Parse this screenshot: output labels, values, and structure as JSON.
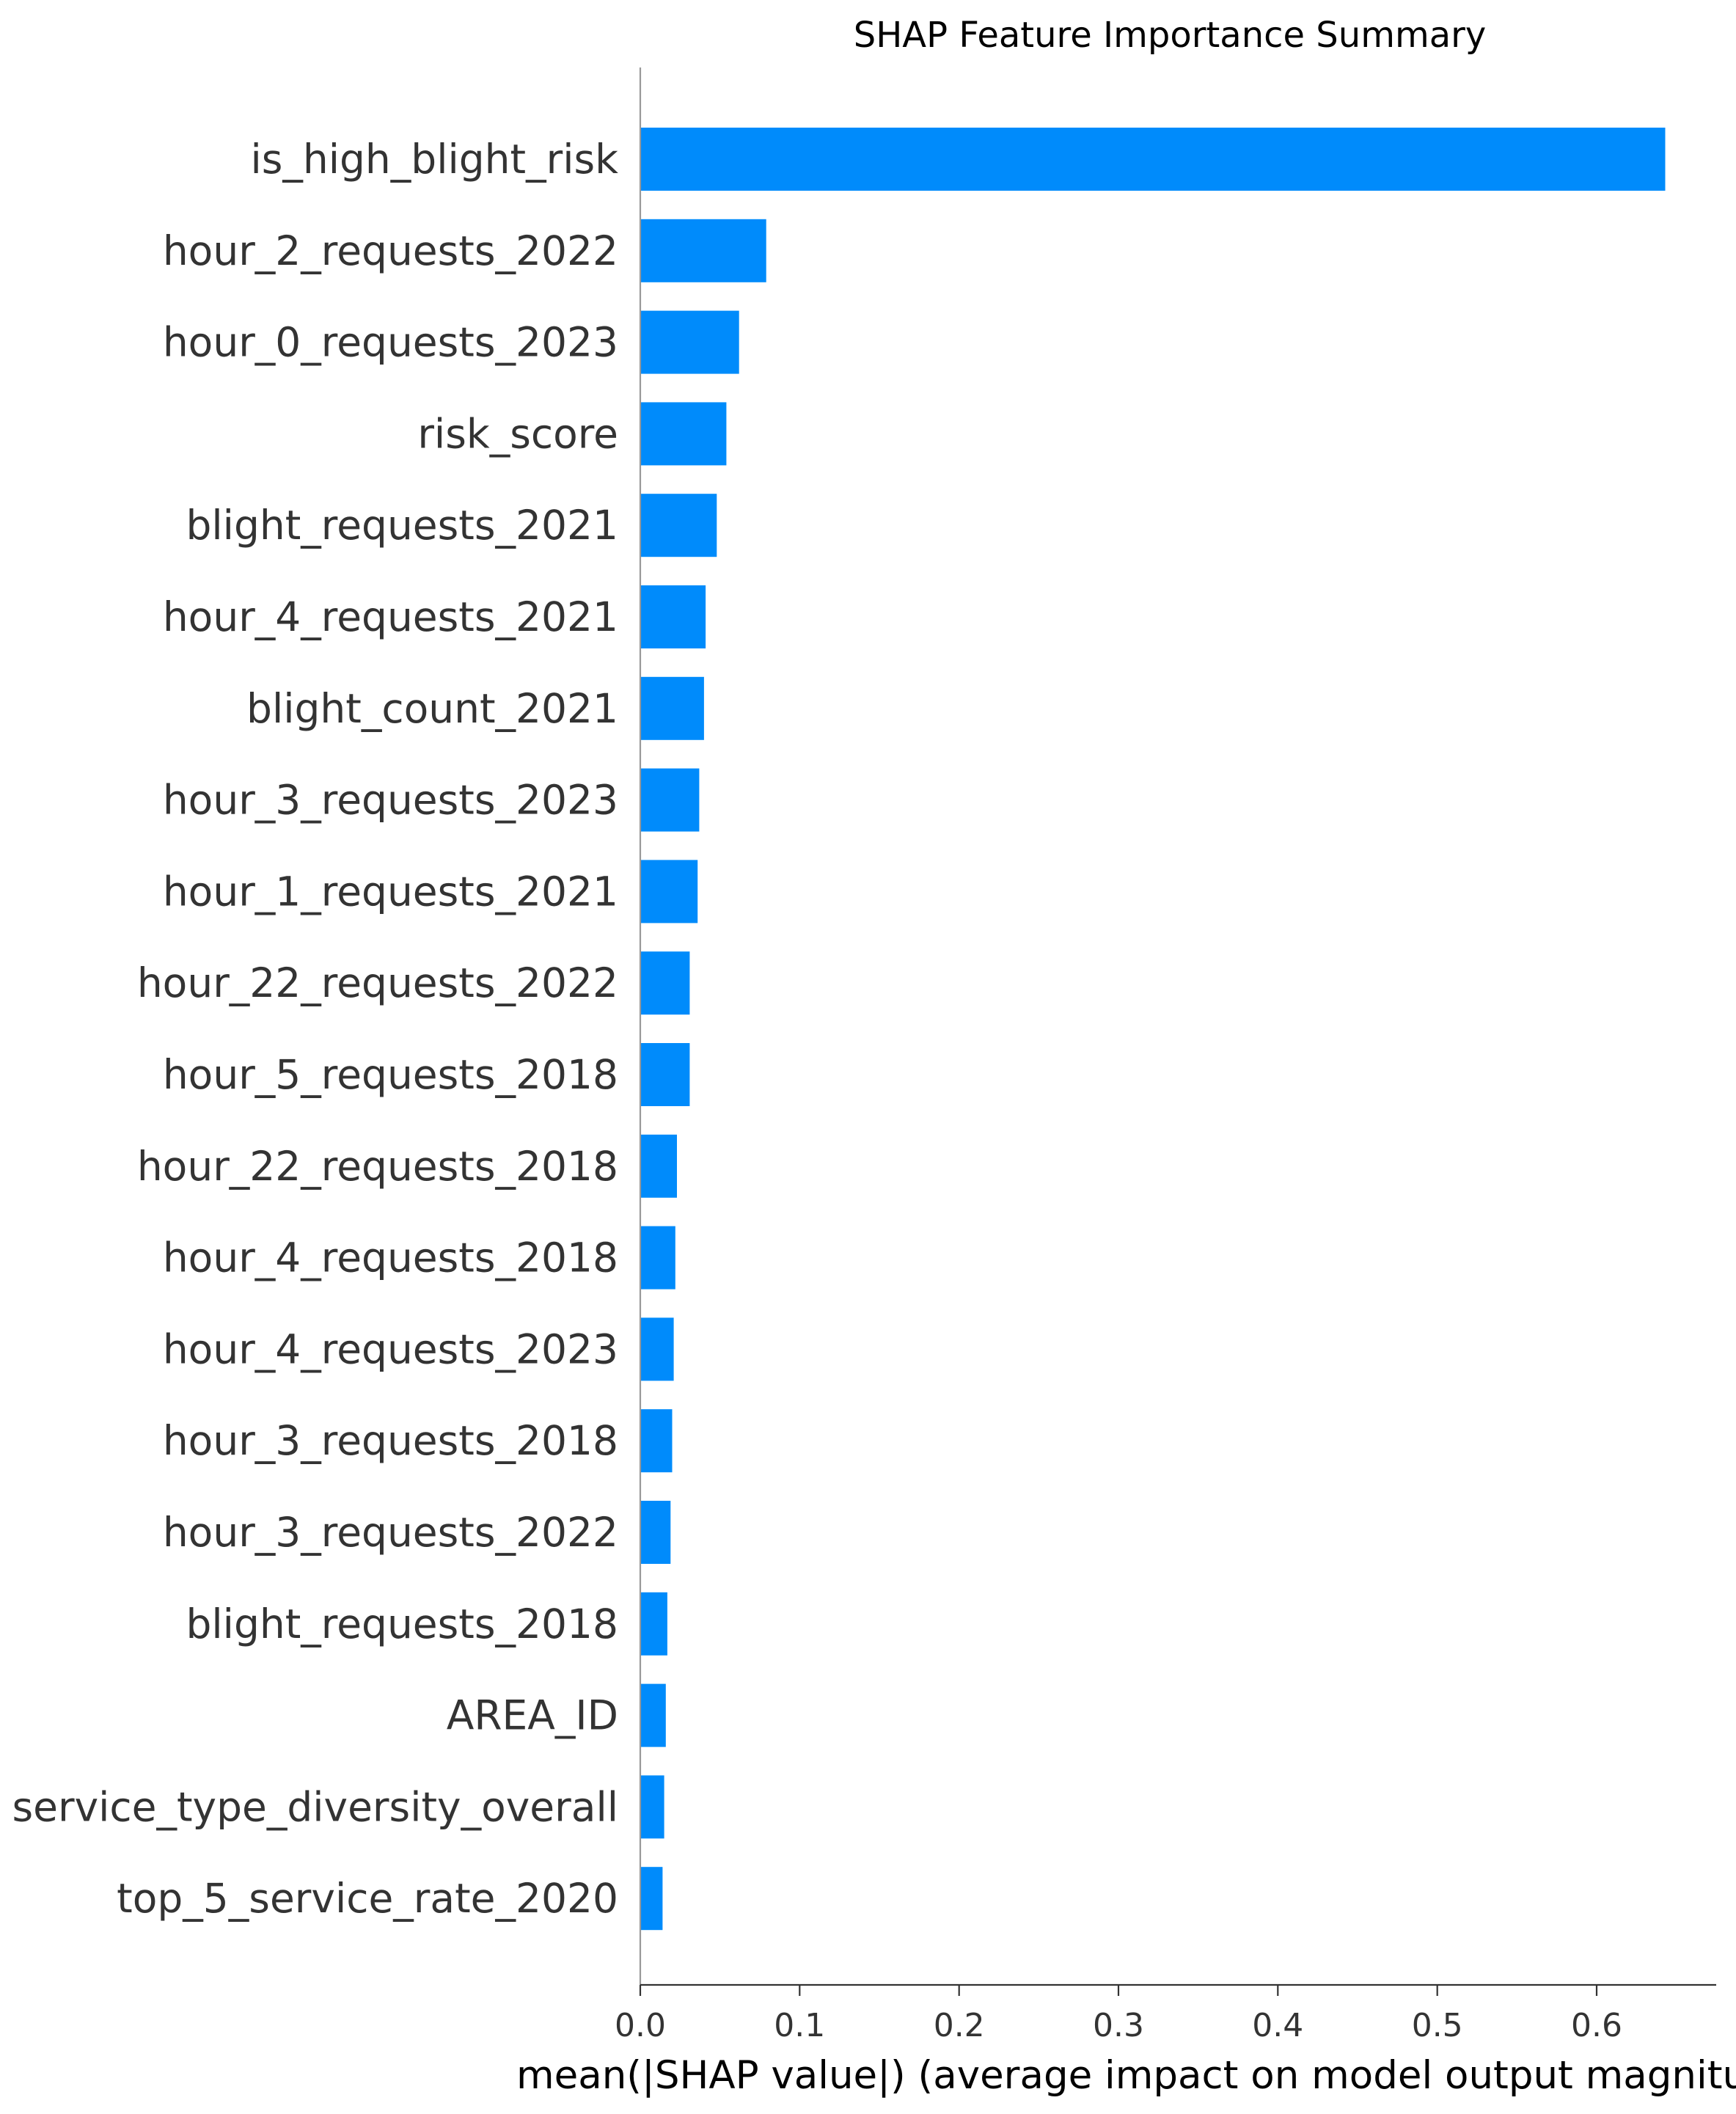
{
  "chart_data": {
    "type": "bar",
    "orientation": "horizontal",
    "title": "SHAP Feature Importance Summary",
    "xlabel": "mean(|SHAP value|) (average impact on model output magnitude)",
    "ylabel": "",
    "xlim": [
      0,
      0.675
    ],
    "xticks": [
      "0.0",
      "0.1",
      "0.2",
      "0.3",
      "0.4",
      "0.5",
      "0.6"
    ],
    "grid": false,
    "legend": "none",
    "bar_color": "#008bfb",
    "categories": [
      "is_high_blight_risk",
      "hour_2_requests_2022",
      "hour_0_requests_2023",
      "risk_score",
      "blight_requests_2021",
      "hour_4_requests_2021",
      "blight_count_2021",
      "hour_3_requests_2023",
      "hour_1_requests_2021",
      "hour_22_requests_2022",
      "hour_5_requests_2018",
      "hour_22_requests_2018",
      "hour_4_requests_2018",
      "hour_4_requests_2023",
      "hour_3_requests_2018",
      "hour_3_requests_2022",
      "blight_requests_2018",
      "AREA_ID",
      "service_type_diversity_overall",
      "top_5_service_rate_2020"
    ],
    "values": [
      0.643,
      0.079,
      0.062,
      0.054,
      0.048,
      0.041,
      0.04,
      0.037,
      0.036,
      0.031,
      0.031,
      0.023,
      0.022,
      0.021,
      0.02,
      0.019,
      0.017,
      0.016,
      0.015,
      0.014
    ]
  }
}
